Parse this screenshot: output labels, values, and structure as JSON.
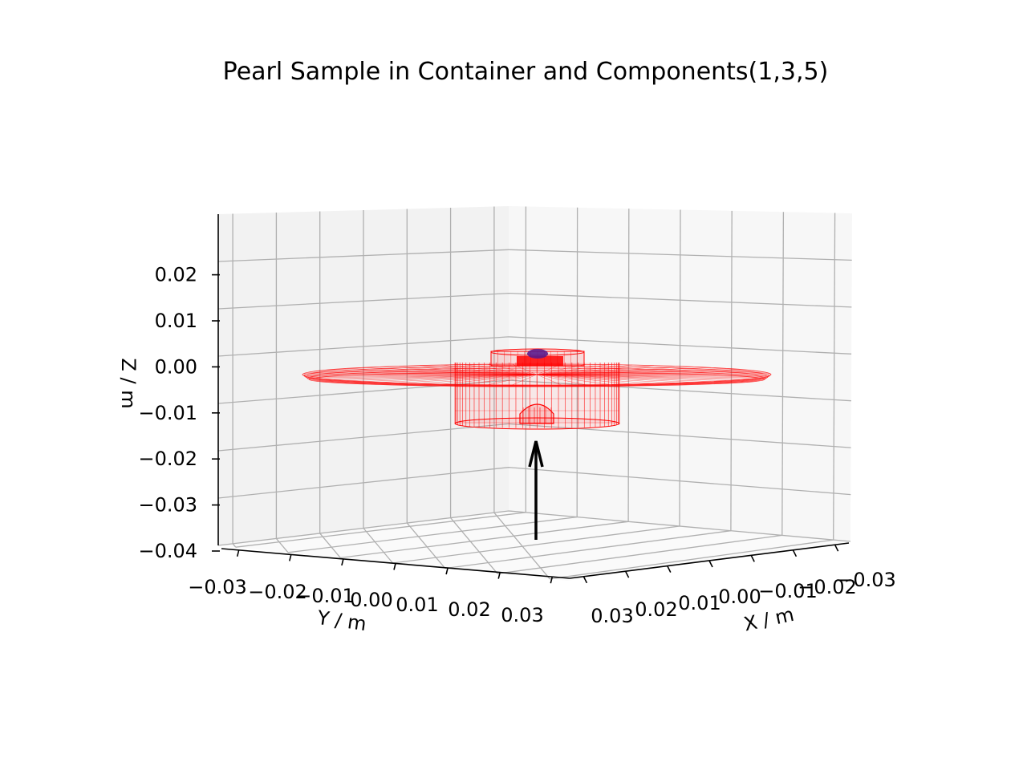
{
  "chart_data": {
    "type": "3d-wireframe",
    "title": "Pearl Sample in Container and Components(1,3,5)",
    "xlabel": "X / m",
    "ylabel": "Y / m",
    "zlabel": "Z / m",
    "x_ticks": [
      "0.03",
      "0.02",
      "0.01",
      "0.00",
      "−0.01",
      "−0.02",
      "−0.03"
    ],
    "y_ticks": [
      "−0.03",
      "−0.02",
      "−0.01",
      "0.00",
      "0.01",
      "0.02",
      "0.03"
    ],
    "z_ticks": [
      "−0.04",
      "−0.03",
      "−0.02",
      "−0.01",
      "0.00",
      "0.01",
      "0.02"
    ],
    "zlim": [
      -0.04,
      0.03
    ],
    "grid": true,
    "colors": {
      "mesh": "#ff0000",
      "sample": "#5a1a8c",
      "arrow": "#000000",
      "grid": "#b0b0b0",
      "pane_left": "#f2f2f2",
      "pane_right": "#f7f7f7",
      "pane_floor": "#fafafa"
    },
    "components": [
      {
        "name": "container",
        "color": "#ff0000"
      },
      {
        "name": "sample",
        "color": "#5a1a8c"
      },
      {
        "name": "beam-arrow",
        "color": "#000000"
      }
    ]
  }
}
